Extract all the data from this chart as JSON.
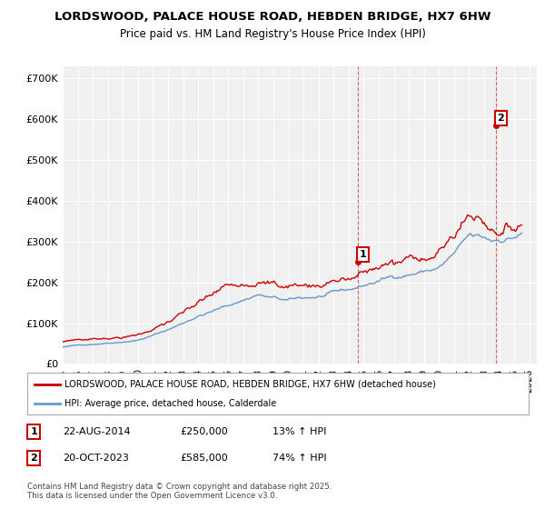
{
  "title": "LORDSWOOD, PALACE HOUSE ROAD, HEBDEN BRIDGE, HX7 6HW",
  "subtitle": "Price paid vs. HM Land Registry's House Price Index (HPI)",
  "ylabel_ticks": [
    "£0",
    "£100K",
    "£200K",
    "£300K",
    "£400K",
    "£500K",
    "£600K",
    "£700K"
  ],
  "ytick_values": [
    0,
    100000,
    200000,
    300000,
    400000,
    500000,
    600000,
    700000
  ],
  "ylim": [
    0,
    730000
  ],
  "xlim_start": 1995.0,
  "xlim_end": 2026.5,
  "red_line_color": "#cc0000",
  "blue_line_color": "#6699cc",
  "vline_color": "#cc0000",
  "purchase1_x": 2014.64,
  "purchase1_y": 250000,
  "purchase1_label": "1",
  "purchase2_x": 2023.8,
  "purchase2_y": 585000,
  "purchase2_label": "2",
  "legend_entry1": "LORDSWOOD, PALACE HOUSE ROAD, HEBDEN BRIDGE, HX7 6HW (detached house)",
  "legend_entry2": "HPI: Average price, detached house, Calderdale",
  "table_row1": [
    "1",
    "22-AUG-2014",
    "£250,000",
    "13% ↑ HPI"
  ],
  "table_row2": [
    "2",
    "20-OCT-2023",
    "£585,000",
    "74% ↑ HPI"
  ],
  "footnote": "Contains HM Land Registry data © Crown copyright and database right 2025.\nThis data is licensed under the Open Government Licence v3.0.",
  "background_color": "#ffffff",
  "plot_bg_color": "#f0f0f0"
}
